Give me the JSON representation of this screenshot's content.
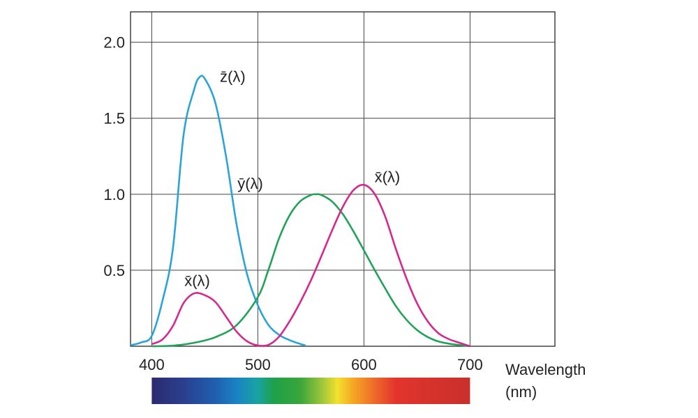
{
  "chart_data": {
    "type": "line",
    "xlabel": "Wavelength",
    "xlabel_unit": "(nm)",
    "xlim": [
      380,
      780
    ],
    "ylim": [
      0,
      2.2
    ],
    "x_ticks": [
      400,
      500,
      600,
      700
    ],
    "y_ticks": [
      0.5,
      1.0,
      1.5,
      2.0
    ],
    "grid": true,
    "series": [
      {
        "name": "z̄(λ)",
        "color": "#2aa3d8",
        "x": [
          380,
          390,
          400,
          410,
          420,
          430,
          440,
          445,
          450,
          460,
          470,
          480,
          490,
          500,
          510,
          520,
          530,
          540,
          545
        ],
        "y": [
          0.006,
          0.025,
          0.068,
          0.296,
          0.646,
          1.39,
          1.69,
          1.77,
          1.76,
          1.6,
          1.25,
          0.8,
          0.47,
          0.27,
          0.14,
          0.075,
          0.04,
          0.015,
          0.005
        ]
      },
      {
        "name": "ȳ(λ)",
        "color": "#1fa357",
        "x": [
          400,
          420,
          440,
          460,
          480,
          500,
          510,
          520,
          530,
          540,
          550,
          555,
          560,
          570,
          580,
          590,
          600,
          610,
          620,
          630,
          640,
          650,
          660,
          670,
          680,
          690,
          700
        ],
        "y": [
          0.0,
          0.004,
          0.023,
          0.06,
          0.139,
          0.323,
          0.503,
          0.71,
          0.862,
          0.954,
          0.995,
          1.0,
          0.995,
          0.952,
          0.87,
          0.757,
          0.631,
          0.503,
          0.381,
          0.265,
          0.175,
          0.107,
          0.061,
          0.032,
          0.017,
          0.008,
          0.0
        ]
      },
      {
        "name": "x̄(λ)",
        "color": "#d6278e",
        "x": [
          400,
          410,
          420,
          430,
          440,
          450,
          460,
          470,
          480,
          490,
          500,
          510,
          520,
          530,
          540,
          550,
          560,
          570,
          580,
          590,
          600,
          610,
          620,
          630,
          640,
          650,
          660,
          670,
          680,
          690,
          700
        ],
        "y": [
          0.014,
          0.044,
          0.134,
          0.284,
          0.348,
          0.336,
          0.291,
          0.195,
          0.096,
          0.032,
          0.005,
          0.009,
          0.063,
          0.165,
          0.29,
          0.433,
          0.595,
          0.762,
          0.916,
          1.026,
          1.062,
          1.003,
          0.854,
          0.642,
          0.448,
          0.284,
          0.165,
          0.087,
          0.047,
          0.023,
          0.0
        ]
      }
    ],
    "annotations": [
      {
        "text": "z̄(λ)",
        "series": "z̄(λ)",
        "at_x": 455,
        "at_y": 1.74
      },
      {
        "text": "ȳ(λ)",
        "series": "ȳ(λ)",
        "at_x": 540,
        "at_y": 1.0
      },
      {
        "text": "x̄(λ)",
        "series": "x̄(λ) long",
        "at_x": 610,
        "at_y": 1.06
      },
      {
        "text": "x̄(λ)",
        "series": "x̄(λ) short",
        "at_x": 440,
        "at_y": 0.36
      }
    ],
    "spectrum_bar": {
      "from": 400,
      "to": 700,
      "stops": [
        {
          "nm": 400,
          "color": "#2b2a6e"
        },
        {
          "nm": 430,
          "color": "#2b3f8e"
        },
        {
          "nm": 460,
          "color": "#1f5fb0"
        },
        {
          "nm": 480,
          "color": "#1a83c4"
        },
        {
          "nm": 500,
          "color": "#19a3a3"
        },
        {
          "nm": 515,
          "color": "#1ea04b"
        },
        {
          "nm": 540,
          "color": "#3aa53a"
        },
        {
          "nm": 560,
          "color": "#9bc53b"
        },
        {
          "nm": 575,
          "color": "#f2e12e"
        },
        {
          "nm": 590,
          "color": "#f5a623"
        },
        {
          "nm": 610,
          "color": "#ee6a2a"
        },
        {
          "nm": 630,
          "color": "#e2342d"
        },
        {
          "nm": 700,
          "color": "#c9302c"
        }
      ]
    }
  }
}
